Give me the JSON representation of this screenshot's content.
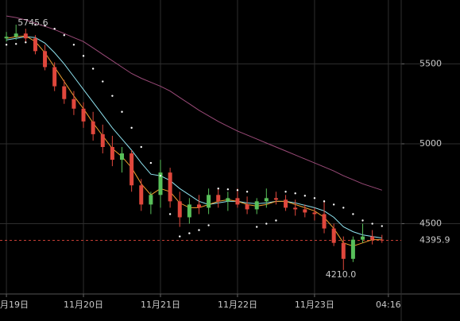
{
  "chart_data": {
    "type": "candlestick",
    "x": [
      0,
      3,
      6,
      9,
      12,
      15,
      18,
      21,
      24,
      27,
      30,
      33,
      36,
      39,
      42,
      45,
      48,
      51,
      54,
      57,
      60,
      63,
      66,
      69,
      72,
      75,
      78,
      81,
      84,
      87,
      90,
      93,
      96,
      99,
      102,
      105,
      108,
      111,
      114,
      117
    ],
    "open": [
      5660,
      5670,
      5690,
      5660,
      5580,
      5480,
      5360,
      5280,
      5220,
      5140,
      5060,
      4980,
      4900,
      4940,
      4740,
      4620,
      4680,
      4820,
      4640,
      4540,
      4620,
      4600,
      4680,
      4640,
      4660,
      4620,
      4590,
      4640,
      4660,
      4650,
      4600,
      4590,
      4570,
      4560,
      4470,
      4380,
      4280,
      4400,
      4420,
      4400
    ],
    "high": [
      5700,
      5745.6,
      5720,
      5680,
      5620,
      5510,
      5400,
      5330,
      5260,
      5200,
      5120,
      5050,
      4980,
      4960,
      4780,
      4700,
      4900,
      4850,
      4700,
      4660,
      4680,
      4720,
      4720,
      4700,
      4720,
      4670,
      4660,
      4720,
      4700,
      4680,
      4650,
      4620,
      4600,
      4640,
      4500,
      4420,
      4420,
      4500,
      4460,
      4430
    ],
    "low": [
      5640,
      5650,
      5640,
      5560,
      5460,
      5330,
      5250,
      5180,
      5100,
      5020,
      4940,
      4860,
      4820,
      4700,
      4580,
      4560,
      4600,
      4600,
      4480,
      4500,
      4560,
      4560,
      4600,
      4580,
      4600,
      4560,
      4560,
      4600,
      4620,
      4580,
      4550,
      4540,
      4520,
      4440,
      4360,
      4210,
      4260,
      4380,
      4370,
      4380
    ],
    "close": [
      5670,
      5690,
      5660,
      5580,
      5480,
      5360,
      5280,
      5220,
      5140,
      5060,
      4980,
      4900,
      4940,
      4740,
      4620,
      4680,
      4820,
      4640,
      4540,
      4620,
      4600,
      4680,
      4640,
      4660,
      4620,
      4590,
      4640,
      4660,
      4650,
      4600,
      4590,
      4570,
      4560,
      4470,
      4380,
      4280,
      4400,
      4420,
      4400,
      4395.9
    ],
    "up_color": "#58c05a",
    "down_color": "#e0473c",
    "lines": [
      {
        "color": "#9a4a78",
        "values": [
          5800,
          5790,
          5775,
          5755,
          5735,
          5715,
          5690,
          5665,
          5640,
          5600,
          5560,
          5520,
          5480,
          5440,
          5410,
          5385,
          5360,
          5330,
          5290,
          5250,
          5210,
          5175,
          5140,
          5110,
          5080,
          5055,
          5030,
          5005,
          4980,
          4955,
          4930,
          4905,
          4880,
          4855,
          4830,
          4800,
          4775,
          4750,
          4730,
          4710
        ]
      },
      {
        "color": "#8fe3f0",
        "values": [
          5650,
          5660,
          5670,
          5665,
          5630,
          5570,
          5500,
          5420,
          5340,
          5260,
          5180,
          5100,
          5030,
          4960,
          4880,
          4810,
          4800,
          4770,
          4720,
          4680,
          4640,
          4620,
          4630,
          4640,
          4640,
          4630,
          4625,
          4630,
          4640,
          4640,
          4630,
          4615,
          4600,
          4580,
          4540,
          4480,
          4450,
          4430,
          4420,
          4410
        ]
      },
      {
        "color": "#f0a030",
        "values": [
          5660,
          5670,
          5675,
          5640,
          5570,
          5480,
          5390,
          5300,
          5220,
          5130,
          5050,
          4970,
          4920,
          4850,
          4750,
          4680,
          4720,
          4700,
          4630,
          4600,
          4600,
          4620,
          4640,
          4650,
          4640,
          4620,
          4610,
          4620,
          4640,
          4640,
          4620,
          4600,
          4580,
          4540,
          4470,
          4380,
          4360,
          4380,
          4400,
          4400
        ]
      }
    ],
    "sar": {
      "color": "#ffffff",
      "values": [
        5620,
        5625,
        5635,
        5745,
        5740,
        5720,
        5680,
        5620,
        5550,
        5470,
        5390,
        5300,
        5200,
        5100,
        4980,
        4880,
        4800,
        4560,
        4420,
        4440,
        4460,
        4490,
        4720,
        4715,
        4710,
        4700,
        4480,
        4500,
        4520,
        4700,
        4690,
        4675,
        4660,
        4640,
        4620,
        4600,
        4560,
        4520,
        4500,
        4485
      ]
    },
    "last_price": 4395.9,
    "min_label": "4210.0",
    "xlim": [
      -2,
      123
    ],
    "ylim": [
      4060,
      5900
    ],
    "xticks": [
      {
        "value": 0,
        "label": "月19日"
      },
      {
        "value": 24,
        "label": "11月20日"
      },
      {
        "value": 48,
        "label": "11月21日"
      },
      {
        "value": 72,
        "label": "11月22日"
      },
      {
        "value": 96,
        "label": "11月23日"
      },
      {
        "value": 119,
        "label": "04:16"
      }
    ],
    "yticks": [
      4500,
      5000,
      5500
    ],
    "grid": true
  }
}
